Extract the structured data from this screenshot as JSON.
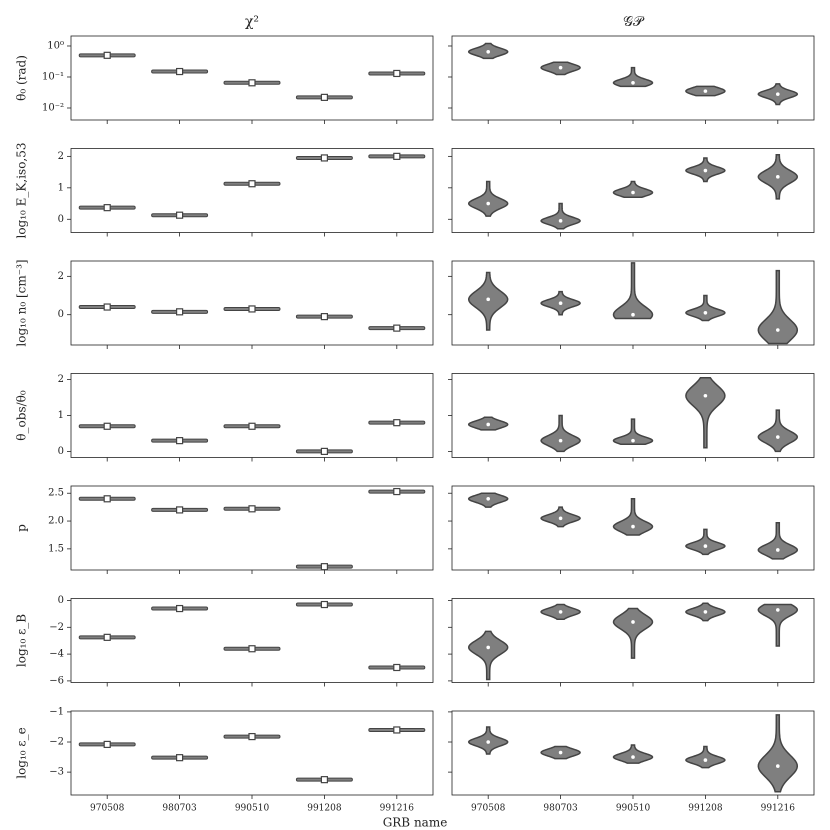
{
  "chart_data": {
    "type": "violin",
    "column_titles": [
      "χ²",
      "𝒢𝒫"
    ],
    "x_label": "GRB name",
    "categories": [
      "970508",
      "980703",
      "990510",
      "991208",
      "991216"
    ],
    "rows": [
      {
        "ylabel": "θ₀ (rad)",
        "log": true,
        "ylim": [
          0.0041,
          2.1
        ],
        "yticks": [
          {
            "value": 0.01,
            "label": "10⁻²"
          },
          {
            "value": 0.1,
            "label": "10⁻¹"
          },
          {
            "value": 1,
            "label": "10⁰"
          }
        ],
        "panels": [
          {
            "medians": [
              0.5,
              0.15,
              0.065,
              0.022,
              0.13
            ]
          },
          {
            "medians": [
              0.65,
              0.2,
              0.065,
              0.035,
              0.028
            ],
            "lows": [
              0.4,
              0.12,
              0.05,
              0.025,
              0.013
            ],
            "highs": [
              1.2,
              0.3,
              0.2,
              0.05,
              0.06
            ]
          }
        ]
      },
      {
        "ylabel": "log₁₀ E_K,iso,53",
        "log": false,
        "ylim": [
          -0.42,
          2.25
        ],
        "yticks": [
          0,
          1,
          2
        ],
        "panels": [
          {
            "medians": [
              0.37,
              0.13,
              1.13,
              1.95,
              2.0
            ]
          },
          {
            "medians": [
              0.5,
              -0.05,
              0.85,
              1.55,
              1.35
            ],
            "lows": [
              0.1,
              -0.3,
              0.7,
              1.2,
              0.65
            ],
            "highs": [
              1.2,
              0.5,
              1.2,
              1.95,
              2.05
            ]
          }
        ]
      },
      {
        "ylabel": "log₁₀ n₀ [cm⁻³]",
        "log": false,
        "ylim": [
          -1.58,
          2.8
        ],
        "yticks": [
          0,
          2
        ],
        "panels": [
          {
            "medians": [
              0.4,
              0.15,
              0.3,
              -0.1,
              -0.7
            ]
          },
          {
            "medians": [
              0.8,
              0.6,
              0,
              0.1,
              -0.8
            ],
            "lows": [
              -0.8,
              0,
              -0.2,
              -0.3,
              -1.5
            ],
            "highs": [
              2.2,
              1.2,
              2.7,
              1,
              2.3
            ]
          }
        ]
      },
      {
        "ylabel": "θ_obs/θ₀",
        "log": false,
        "ylim": [
          -0.17,
          2.17
        ],
        "yticks": [
          0,
          1,
          2
        ],
        "panels": [
          {
            "medians": [
              0.7,
              0.3,
              0.7,
              0,
              0.8
            ]
          },
          {
            "medians": [
              0.75,
              0.3,
              0.3,
              1.55,
              0.4
            ],
            "lows": [
              0.6,
              0,
              0.2,
              0.1,
              0
            ],
            "highs": [
              0.95,
              1,
              0.9,
              2.05,
              1.15
            ]
          }
        ]
      },
      {
        "ylabel": "p",
        "log": false,
        "ylim": [
          1.12,
          2.63
        ],
        "yticks": [
          {
            "value": 1.5,
            "label": "1.5"
          },
          {
            "value": 2,
            "label": "2.0"
          },
          2.5
        ],
        "panels": [
          {
            "medians": [
              2.4,
              2.2,
              2.22,
              1.18,
              2.53
            ]
          },
          {
            "medians": [
              2.4,
              2.05,
              1.9,
              1.55,
              1.48
            ],
            "lows": [
              2.25,
              1.9,
              1.75,
              1.4,
              1.32
            ],
            "highs": [
              2.5,
              2.25,
              2.4,
              1.85,
              1.97
            ]
          }
        ]
      },
      {
        "ylabel": "log₁₀ ε_B",
        "log": false,
        "ylim": [
          -6.12,
          0.15
        ],
        "yticks": [
          {
            "value": -6,
            "label": "−6"
          },
          {
            "value": -4,
            "label": "−4"
          },
          {
            "value": -2,
            "label": "−2"
          },
          0
        ],
        "panels": [
          {
            "medians": [
              -2.75,
              -0.6,
              -3.6,
              -0.3,
              -5
            ]
          },
          {
            "medians": [
              -3.5,
              -0.85,
              -1.6,
              -0.85,
              -0.7
            ],
            "lows": [
              -5.9,
              -1.4,
              -4.3,
              -1.5,
              -3.4
            ],
            "highs": [
              -2.3,
              -0.3,
              -0.6,
              -0.2,
              -0.3
            ]
          }
        ]
      },
      {
        "ylabel": "log₁₀ ε_e",
        "log": false,
        "ylim": [
          -3.76,
          -0.97
        ],
        "yticks": [
          {
            "value": -3,
            "label": "−3"
          },
          {
            "value": -2,
            "label": "−2"
          },
          {
            "value": -1,
            "label": "−1"
          }
        ],
        "panels": [
          {
            "medians": [
              -2.08,
              -2.52,
              -1.82,
              -3.25,
              -1.6
            ]
          },
          {
            "medians": [
              -2,
              -2.35,
              -2.5,
              -2.6,
              -2.8
            ],
            "lows": [
              -2.4,
              -2.55,
              -2.7,
              -2.85,
              -3.65
            ],
            "highs": [
              -1.5,
              -2.15,
              -2.1,
              -2.15,
              -1.1
            ]
          }
        ]
      }
    ]
  }
}
